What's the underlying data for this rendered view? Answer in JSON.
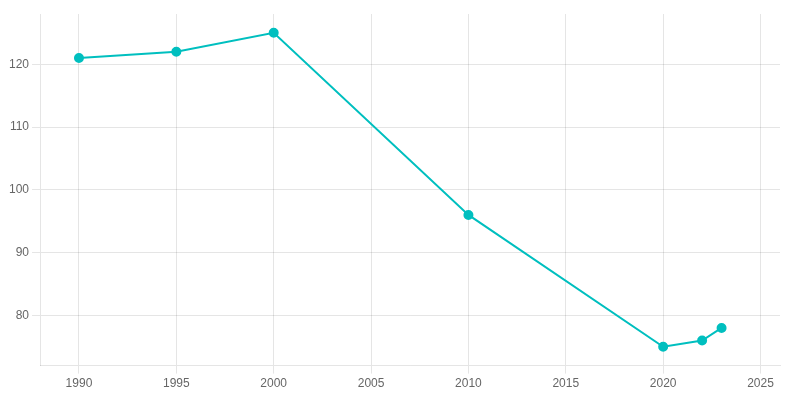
{
  "chart_data": {
    "type": "line",
    "x": [
      1990,
      1995,
      2000,
      2010,
      2020,
      2022,
      2023
    ],
    "values": [
      121,
      122,
      125,
      96,
      75,
      76,
      78
    ],
    "color": "#00BFBF",
    "marker": "circle",
    "xlim": [
      1988,
      2026
    ],
    "ylim": [
      72,
      128
    ],
    "xticks": [
      1990,
      1995,
      2000,
      2005,
      2010,
      2015,
      2020,
      2025
    ],
    "yticks": [
      80,
      90,
      100,
      110,
      120
    ],
    "grid": true
  }
}
